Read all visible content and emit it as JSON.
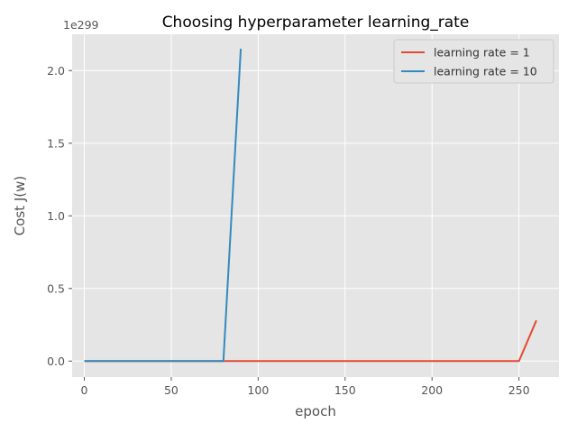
{
  "chart_data": {
    "type": "line",
    "title": "Choosing hyperparameter learning_rate",
    "xlabel": "epoch",
    "ylabel": "Cost  J(w)",
    "y_scale_label": "1e299",
    "xlim": [
      -7,
      273
    ],
    "ylim": [
      -0.11,
      2.25
    ],
    "x_ticks": [
      0,
      50,
      100,
      150,
      200,
      250
    ],
    "y_ticks": [
      0.0,
      0.5,
      1.0,
      1.5,
      2.0
    ],
    "x_tick_labels": [
      "0",
      "50",
      "100",
      "150",
      "200",
      "250"
    ],
    "y_tick_labels": [
      "0.0",
      "0.5",
      "1.0",
      "1.5",
      "2.0"
    ],
    "grid": true,
    "legend_position": "top-right",
    "series": [
      {
        "name": "learning rate = 1",
        "color": "#E24A33",
        "x": [
          0,
          10,
          20,
          30,
          40,
          50,
          60,
          70,
          80,
          90,
          100,
          110,
          120,
          130,
          140,
          150,
          160,
          170,
          180,
          190,
          200,
          210,
          220,
          230,
          240,
          250,
          260
        ],
        "y": [
          0,
          0,
          0,
          0,
          0,
          0,
          0,
          0,
          0,
          0,
          0,
          0,
          0,
          0,
          0,
          0,
          0,
          0,
          0,
          0,
          0,
          0,
          0,
          0,
          0,
          0,
          0.28
        ]
      },
      {
        "name": "learning rate = 10",
        "color": "#348ABD",
        "x": [
          0,
          10,
          20,
          30,
          40,
          50,
          60,
          70,
          80,
          90
        ],
        "y": [
          0,
          0,
          0,
          0,
          0,
          0,
          0,
          0,
          0,
          2.15
        ]
      }
    ]
  }
}
